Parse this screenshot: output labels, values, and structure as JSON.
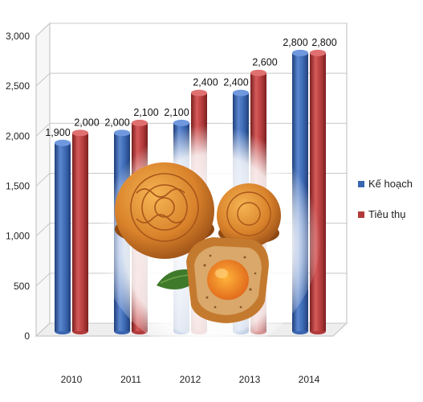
{
  "chart_data": {
    "type": "bar",
    "style": "3d-cylinder",
    "title": "",
    "xlabel": "",
    "ylabel": "",
    "categories": [
      "2010",
      "2011",
      "2012",
      "2013",
      "2014"
    ],
    "series": [
      {
        "name": "Kế hoạch",
        "color": "#3a66b0",
        "values": [
          1900,
          2000,
          2100,
          2400,
          2800
        ],
        "labels": [
          "1,900",
          "2,000",
          "2,100",
          "2,400",
          "2,800"
        ]
      },
      {
        "name": "Tiêu thụ",
        "color": "#b23a3a",
        "values": [
          2000,
          2100,
          2400,
          2600,
          2800
        ],
        "labels": [
          "2,000",
          "2,100",
          "2,400",
          "2,600",
          "2,800"
        ]
      }
    ],
    "ylim": [
      0,
      3000
    ],
    "yticks": [
      0,
      500,
      1000,
      1500,
      2000,
      2500,
      3000
    ],
    "ytick_labels": [
      "0",
      "500",
      "1,000",
      "1,500",
      "2,000",
      "2,500",
      "3,000"
    ],
    "grid": true,
    "legend": "right"
  },
  "overlay_image": "mooncake-photo"
}
